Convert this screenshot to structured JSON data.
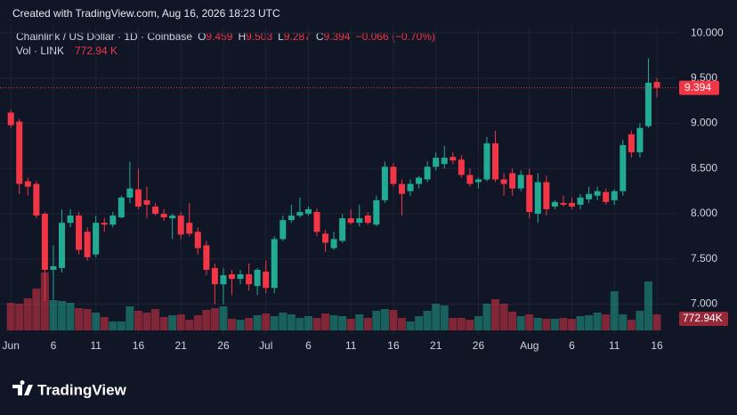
{
  "header": "Created with TradingView.com, Aug 16, 2026 18:23 UTC",
  "logo": "TradingView",
  "chart_data": {
    "type": "candlestick",
    "symbol": "Chainlink / US Dollar · 1D · Coinbase",
    "ohlc_labels": [
      "O",
      "H",
      "L",
      "C"
    ],
    "change": "−0.066 (−0.70%)",
    "volume_title": "Vol · LINK",
    "legend_volume": "772.94 K",
    "volume_tag": "772.94K",
    "up_color": "#22ab94",
    "down_color": "#f23645",
    "grid": true,
    "x": [
      "Jun 1",
      "Jun 2",
      "Jun 3",
      "Jun 4",
      "Jun 5",
      "Jun 6",
      "Jun 7",
      "Jun 8",
      "Jun 9",
      "Jun 10",
      "Jun 11",
      "Jun 12",
      "Jun 13",
      "Jun 14",
      "Jun 15",
      "Jun 16",
      "Jun 17",
      "Jun 18",
      "Jun 19",
      "Jun 20",
      "Jun 21",
      "Jun 22",
      "Jun 23",
      "Jun 24",
      "Jun 25",
      "Jun 26",
      "Jun 27",
      "Jun 28",
      "Jun 29",
      "Jun 30",
      "Jul 1",
      "Jul 2",
      "Jul 3",
      "Jul 4",
      "Jul 5",
      "Jul 6",
      "Jul 7",
      "Jul 8",
      "Jul 9",
      "Jul 10",
      "Jul 11",
      "Jul 12",
      "Jul 13",
      "Jul 14",
      "Jul 15",
      "Jul 16",
      "Jul 17",
      "Jul 18",
      "Jul 19",
      "Jul 20",
      "Jul 21",
      "Jul 22",
      "Jul 23",
      "Jul 24",
      "Jul 25",
      "Jul 26",
      "Jul 27",
      "Jul 28",
      "Jul 29",
      "Jul 30",
      "Jul 31",
      "Aug 1",
      "Aug 2",
      "Aug 3",
      "Aug 4",
      "Aug 5",
      "Aug 6",
      "Aug 7",
      "Aug 8",
      "Aug 9",
      "Aug 10",
      "Aug 11",
      "Aug 12",
      "Aug 13",
      "Aug 14",
      "Aug 15",
      "Aug 16"
    ],
    "open": [
      9.12,
      9.02,
      8.36,
      8.33,
      8.0,
      7.38,
      7.4,
      7.9,
      7.98,
      7.8,
      7.55,
      7.9,
      7.88,
      7.96,
      8.18,
      8.27,
      8.15,
      8.08,
      8.0,
      7.95,
      7.98,
      7.9,
      7.8,
      7.65,
      7.4,
      7.22,
      7.33,
      7.28,
      7.33,
      7.2,
      7.36,
      7.18,
      7.72,
      7.93,
      7.98,
      8.0,
      8.02,
      7.78,
      7.62,
      7.7,
      7.95,
      7.9,
      7.98,
      7.88,
      8.15,
      8.52,
      8.33,
      8.25,
      8.33,
      8.38,
      8.52,
      8.55,
      8.63,
      8.6,
      8.43,
      8.35,
      8.38,
      8.78,
      8.38,
      8.45,
      8.28,
      8.43,
      8.0,
      8.35,
      8.08,
      8.12,
      8.12,
      8.1,
      8.16,
      8.2,
      8.24,
      8.15,
      8.25,
      8.88,
      8.68,
      8.97,
      9.459
    ],
    "high": [
      9.15,
      9.05,
      8.4,
      8.36,
      8.02,
      7.65,
      8.05,
      8.05,
      8.02,
      7.85,
      7.98,
      7.95,
      8.02,
      8.2,
      8.58,
      8.5,
      8.3,
      8.12,
      8.05,
      8.0,
      8.02,
      8.12,
      7.85,
      7.7,
      7.45,
      7.4,
      7.38,
      7.38,
      7.45,
      7.4,
      7.48,
      7.75,
      7.98,
      8.1,
      8.18,
      8.08,
      8.06,
      7.82,
      7.8,
      8.0,
      8.05,
      8.1,
      8.02,
      8.2,
      8.58,
      8.56,
      8.38,
      8.38,
      8.42,
      8.58,
      8.68,
      8.75,
      8.68,
      8.65,
      8.5,
      8.4,
      8.85,
      8.92,
      8.45,
      8.5,
      8.48,
      8.5,
      8.45,
      8.42,
      8.15,
      8.2,
      8.18,
      8.22,
      8.3,
      8.3,
      8.28,
      8.27,
      8.82,
      8.92,
      9.0,
      9.72,
      9.503
    ],
    "low": [
      8.95,
      8.22,
      8.2,
      7.95,
      7.03,
      7.05,
      7.35,
      7.85,
      7.55,
      7.48,
      7.52,
      7.8,
      7.85,
      7.95,
      8.12,
      8.05,
      7.95,
      7.98,
      7.92,
      7.72,
      7.72,
      7.75,
      7.55,
      7.32,
      7.0,
      7.0,
      7.1,
      7.22,
      7.15,
      7.1,
      7.12,
      7.12,
      7.7,
      7.9,
      7.96,
      7.98,
      7.75,
      7.58,
      7.6,
      7.68,
      7.88,
      7.86,
      7.88,
      7.86,
      8.12,
      8.3,
      7.98,
      8.2,
      8.28,
      8.35,
      8.48,
      8.5,
      8.55,
      8.4,
      8.3,
      8.28,
      8.36,
      8.35,
      8.2,
      8.2,
      8.25,
      7.95,
      7.9,
      7.98,
      8.05,
      8.08,
      8.05,
      8.05,
      8.12,
      8.15,
      8.1,
      8.1,
      8.2,
      8.62,
      8.62,
      8.95,
      9.287
    ],
    "close": [
      8.98,
      8.33,
      8.3,
      7.98,
      7.38,
      7.42,
      7.9,
      7.98,
      7.6,
      7.52,
      7.9,
      7.88,
      7.98,
      8.18,
      8.28,
      8.08,
      8.1,
      8.0,
      7.96,
      7.98,
      7.77,
      7.78,
      7.62,
      7.38,
      7.22,
      7.32,
      7.28,
      7.33,
      7.22,
      7.38,
      7.18,
      7.72,
      7.93,
      7.98,
      8.02,
      8.05,
      7.8,
      7.68,
      7.72,
      7.95,
      7.9,
      7.95,
      7.9,
      8.15,
      8.52,
      8.33,
      8.22,
      8.33,
      8.4,
      8.52,
      8.62,
      8.62,
      8.59,
      8.43,
      8.33,
      8.38,
      8.78,
      8.38,
      8.33,
      8.28,
      8.43,
      8.02,
      8.35,
      8.05,
      8.13,
      8.1,
      8.08,
      8.18,
      8.22,
      8.25,
      8.13,
      8.25,
      8.76,
      8.68,
      8.95,
      9.45,
      9.394
    ],
    "volume": [
      1333,
      1290,
      1548,
      2021,
      2795,
      1462,
      1419,
      1333,
      1075,
      1032,
      860,
      645,
      430,
      430,
      1161,
      946,
      860,
      1032,
      645,
      731,
      774,
      516,
      731,
      989,
      1075,
      1161,
      559,
      516,
      602,
      731,
      817,
      688,
      860,
      774,
      602,
      688,
      602,
      817,
      731,
      688,
      559,
      774,
      602,
      946,
      1032,
      989,
      602,
      430,
      688,
      946,
      1290,
      1204,
      602,
      602,
      516,
      688,
      1290,
      1505,
      1290,
      903,
      688,
      774,
      602,
      559,
      559,
      602,
      559,
      688,
      731,
      860,
      774,
      1892,
      774,
      516,
      946,
      2365,
      772.94
    ],
    "ylim": [
      6.67,
      10.07
    ],
    "yticks": [
      {
        "value": 7,
        "label": "7.000"
      },
      {
        "value": 7.5,
        "label": "7.500"
      },
      {
        "value": 8,
        "label": "8.000"
      },
      {
        "value": 8.5,
        "label": "8.500"
      },
      {
        "value": 9,
        "label": "9.000"
      },
      {
        "value": 9.5,
        "label": "9.500"
      },
      {
        "value": 10,
        "label": "10.000"
      }
    ],
    "xticks": [
      {
        "value": "Jun 1",
        "label": "Jun"
      },
      {
        "value": "Jun 6",
        "label": "6"
      },
      {
        "value": "Jun 11",
        "label": "11"
      },
      {
        "value": "Jun 16",
        "label": "16"
      },
      {
        "value": "Jun 21",
        "label": "21"
      },
      {
        "value": "Jun 26",
        "label": "26"
      },
      {
        "value": "Jul 1",
        "label": "Jul"
      },
      {
        "value": "Jul 6",
        "label": "6"
      },
      {
        "value": "Jul 11",
        "label": "11"
      },
      {
        "value": "Jul 16",
        "label": "16"
      },
      {
        "value": "Jul 21",
        "label": "21"
      },
      {
        "value": "Jul 26",
        "label": "26"
      },
      {
        "value": "Aug 1",
        "label": "Aug"
      },
      {
        "value": "Aug 6",
        "label": "6"
      },
      {
        "value": "Aug 11",
        "label": "11"
      },
      {
        "value": "Aug 16",
        "label": "16"
      }
    ]
  }
}
